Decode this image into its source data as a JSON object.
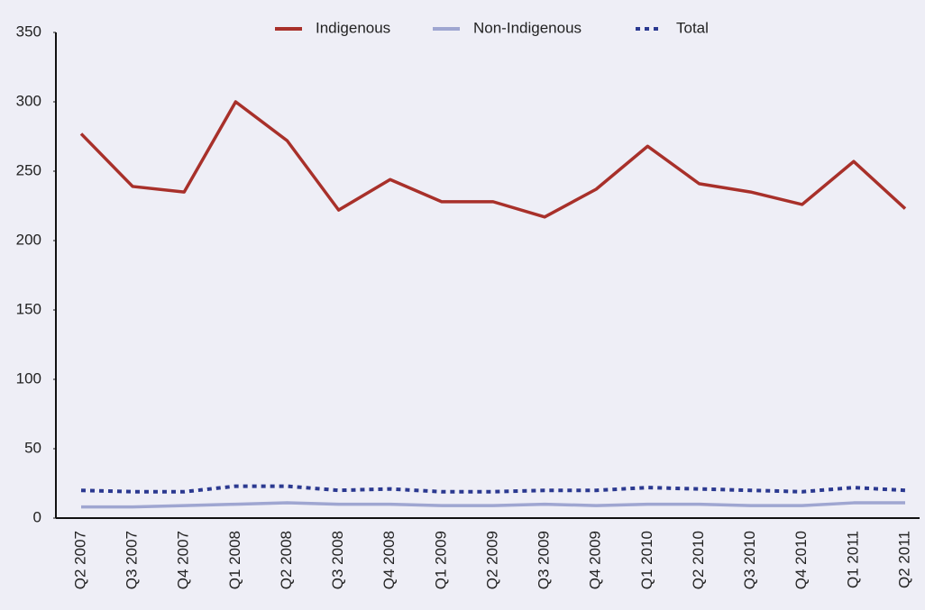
{
  "chart_data": {
    "type": "line",
    "categories": [
      "Q2 2007",
      "Q3 2007",
      "Q4 2007",
      "Q1 2008",
      "Q2 2008",
      "Q3 2008",
      "Q4 2008",
      "Q1 2009",
      "Q2 2009",
      "Q3 2009",
      "Q4 2009",
      "Q1 2010",
      "Q2 2010",
      "Q3 2010",
      "Q4 2010",
      "Q1 2011",
      "Q2 2011"
    ],
    "series": [
      {
        "name": "Indigenous",
        "color": "#a8302a",
        "line_style": "solid",
        "values": [
          277,
          239,
          235,
          300,
          272,
          222,
          244,
          228,
          228,
          217,
          237,
          268,
          241,
          235,
          226,
          257,
          223
        ]
      },
      {
        "name": "Non-Indigenous",
        "color": "#9fa6d1",
        "line_style": "solid",
        "values": [
          8,
          8,
          9,
          10,
          11,
          10,
          10,
          9,
          9,
          10,
          9,
          10,
          10,
          9,
          9,
          11,
          11
        ]
      },
      {
        "name": "Total",
        "color": "#2b3990",
        "line_style": "dotted",
        "values": [
          20,
          19,
          19,
          23,
          23,
          20,
          21,
          19,
          19,
          20,
          20,
          22,
          21,
          20,
          19,
          22,
          20
        ]
      }
    ],
    "ylim": [
      0,
      350
    ],
    "yticks": [
      0,
      50,
      100,
      150,
      200,
      250,
      300,
      350
    ],
    "grid": false,
    "legend": "top"
  }
}
